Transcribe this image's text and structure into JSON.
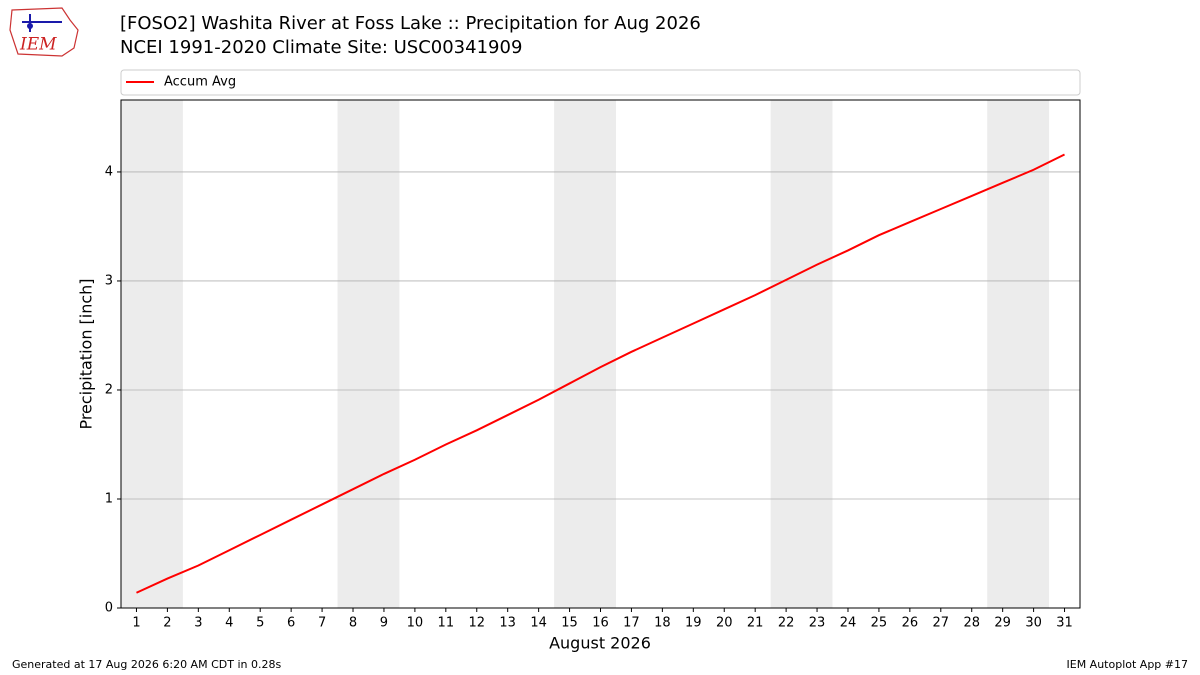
{
  "logo_text": "IEM",
  "chart_data": {
    "type": "line",
    "title": "[FOSO2] Washita River at Foss Lake :: Precipitation for Aug 2026",
    "subtitle": "NCEI 1991-2020 Climate Site: USC00341909",
    "xlabel": "August 2026",
    "ylabel": "Precipitation [inch]",
    "x": [
      1,
      2,
      3,
      4,
      5,
      6,
      7,
      8,
      9,
      10,
      11,
      12,
      13,
      14,
      15,
      16,
      17,
      18,
      19,
      20,
      21,
      22,
      23,
      24,
      25,
      26,
      27,
      28,
      29,
      30,
      31
    ],
    "series": [
      {
        "name": "Accum Avg",
        "color": "#ff0000",
        "values": [
          0.14,
          0.27,
          0.39,
          0.53,
          0.67,
          0.81,
          0.95,
          1.09,
          1.23,
          1.36,
          1.5,
          1.63,
          1.77,
          1.91,
          2.06,
          2.21,
          2.35,
          2.48,
          2.61,
          2.74,
          2.87,
          3.01,
          3.15,
          3.28,
          3.42,
          3.54,
          3.66,
          3.78,
          3.9,
          4.02,
          4.16
        ]
      }
    ],
    "shaded_spans": [
      [
        0.5,
        2.5
      ],
      [
        7.5,
        9.5
      ],
      [
        14.5,
        16.5
      ],
      [
        21.5,
        23.5
      ],
      [
        28.5,
        30.5
      ]
    ],
    "shade_color": "#ececec",
    "xlim": [
      0.5,
      31.5
    ],
    "xticks": [
      1,
      2,
      3,
      4,
      5,
      6,
      7,
      8,
      9,
      10,
      11,
      12,
      13,
      14,
      15,
      16,
      17,
      18,
      19,
      20,
      21,
      22,
      23,
      24,
      25,
      26,
      27,
      28,
      29,
      30,
      31
    ],
    "ylim": [
      0,
      4.66
    ],
    "yticks": [
      0,
      1,
      2,
      3,
      4
    ],
    "grid": true,
    "legend": "top"
  },
  "footer_left": "Generated at 17 Aug 2026 6:20 AM CDT in 0.28s",
  "footer_right": "IEM Autoplot App #17"
}
